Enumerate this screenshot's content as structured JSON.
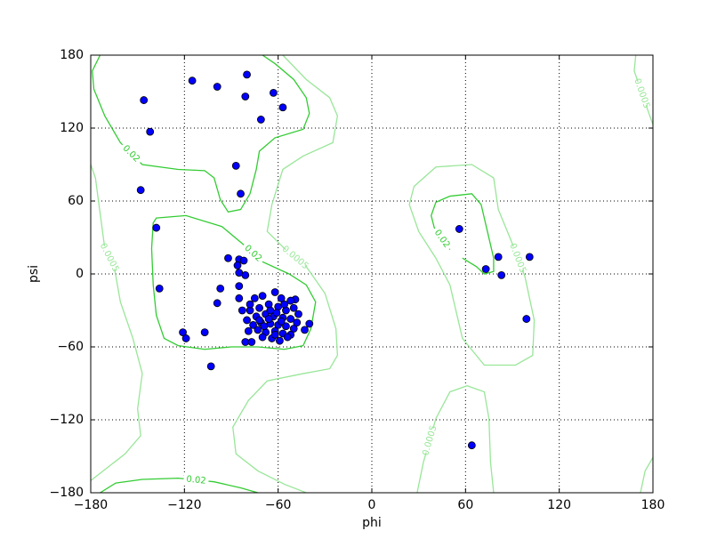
{
  "chart_data": {
    "type": "scatter",
    "x_label": "phi",
    "y_label": "psi",
    "xlim": [
      -180,
      180
    ],
    "ylim": [
      -180,
      180
    ],
    "xticks": [
      {
        "value": -180,
        "label": "−180"
      },
      {
        "value": -120,
        "label": "−120"
      },
      {
        "value": -60,
        "label": "−60"
      },
      0,
      60,
      120,
      180
    ],
    "yticks": [
      {
        "value": -180,
        "label": "−180"
      },
      {
        "value": -120,
        "label": "−120"
      },
      {
        "value": -60,
        "label": "−60"
      },
      0,
      60,
      120,
      180
    ],
    "grid": true,
    "color": "#0000ff",
    "x": [
      -146,
      -142,
      -115,
      -99,
      -80,
      -81,
      -63,
      -57,
      -71,
      -87,
      -148,
      -84,
      -138,
      -136,
      -121,
      -119,
      -107,
      -103,
      -99,
      -97,
      -92,
      -85,
      -82,
      -86,
      -85,
      -81,
      -85,
      -85,
      56,
      73,
      81,
      101,
      83,
      99,
      64,
      -40,
      -43,
      -49,
      -81,
      -77,
      -75,
      -70,
      -62,
      -58,
      -52,
      -78,
      -72,
      -66,
      -60,
      -55,
      -50,
      -80,
      -74,
      -68,
      -63,
      -57,
      -52,
      -47,
      -76,
      -71,
      -65,
      -60,
      -55,
      -50,
      -79,
      -73,
      -68,
      -62,
      -57,
      -52,
      -70,
      -64,
      -59,
      -54,
      -66,
      -61,
      -69,
      -58,
      -65,
      -72,
      -78,
      -83,
      -48,
      -56,
      -62
    ],
    "y": [
      143,
      117,
      159,
      154,
      164,
      146,
      149,
      137,
      127,
      89,
      69,
      66,
      38,
      -12,
      -48,
      -53,
      -48,
      -76,
      -24,
      -12,
      13,
      12,
      11,
      7,
      1,
      -1,
      -10,
      -20,
      37,
      4,
      14,
      14,
      -1,
      -37,
      -141,
      -41,
      -46,
      -21,
      -56,
      -56,
      -20,
      -18,
      -15,
      -20,
      -22,
      -30,
      -28,
      -25,
      -27,
      -30,
      -28,
      -38,
      -35,
      -33,
      -35,
      -36,
      -37,
      -33,
      -42,
      -40,
      -41,
      -42,
      -43,
      -45,
      -47,
      -46,
      -48,
      -47,
      -49,
      -50,
      -52,
      -53,
      -55,
      -52,
      -37,
      -32,
      -43,
      -39,
      -30,
      -38,
      -25,
      -30,
      -40,
      -25,
      -50
    ],
    "contours": [
      {
        "level": 0.02,
        "color": "#33cc33",
        "closed": false,
        "x": [
          -174,
          -179,
          -178,
          -171,
          -161,
          -147,
          -124,
          -107,
          -101,
          -97,
          -92,
          -84,
          -78,
          -74,
          -72,
          -62,
          -44,
          -40,
          -42,
          -50,
          -62,
          -70
        ],
        "y": [
          180,
          167,
          152,
          130,
          108,
          90,
          86,
          85,
          79,
          61,
          51,
          53,
          66,
          86,
          101,
          112,
          119,
          132,
          145,
          160,
          173,
          180
        ]
      },
      {
        "level": 0.02,
        "color": "#33cc33",
        "closed": true,
        "x": [
          -138,
          -119,
          -96,
          -82,
          -70,
          -53,
          -42,
          -36,
          -39,
          -44,
          -56,
          -73,
          -90,
          -107,
          -124,
          -133,
          -138,
          -140,
          -141,
          -140
        ],
        "y": [
          46,
          48,
          39,
          24,
          10,
          0,
          -9,
          -23,
          -45,
          -59,
          -62,
          -60,
          -60,
          -62,
          -59,
          -53,
          -34,
          -9,
          21,
          42
        ]
      },
      {
        "level": 0.02,
        "color": "#33cc33",
        "closed": false,
        "x": [
          50,
          40,
          38,
          41,
          50,
          64,
          70,
          74,
          78,
          78,
          72,
          67,
          58
        ],
        "y": [
          20,
          38,
          48,
          59,
          64,
          66,
          57,
          35,
          13,
          2,
          0,
          6,
          13
        ]
      },
      {
        "level": 0.02,
        "color": "#33cc33",
        "closed": false,
        "x": [
          -174,
          -164,
          -147,
          -124,
          -101,
          -84,
          -73
        ],
        "y": [
          -180,
          -172,
          -169,
          -168,
          -171,
          -176,
          -180
        ]
      },
      {
        "level": 0.0005,
        "color": "#99e699",
        "closed": false,
        "x": [
          -180,
          -177,
          -174,
          -171,
          -165,
          -161,
          -153,
          -147,
          -150,
          -148,
          -158,
          -173,
          -180
        ],
        "y": [
          90,
          79,
          50,
          21,
          6,
          -23,
          -53,
          -82,
          -111,
          -133,
          -148,
          -163,
          -170
        ]
      },
      {
        "level": 0.0005,
        "color": "#99e699",
        "closed": false,
        "x": [
          -57,
          -42,
          -27,
          -22,
          -25,
          -44,
          -57,
          -64,
          -67,
          -56,
          -42,
          -30,
          -23,
          -22,
          -27,
          -44,
          -67,
          -79,
          -89,
          -87,
          -73,
          -56,
          -42
        ],
        "y": [
          180,
          160,
          145,
          130,
          108,
          97,
          86,
          57,
          35,
          21,
          6,
          -16,
          -45,
          -67,
          -78,
          -82,
          -88,
          -104,
          -126,
          -148,
          -162,
          -173,
          -180
        ]
      },
      {
        "level": 0.0005,
        "color": "#99e699",
        "closed": true,
        "x": [
          27,
          24,
          30,
          41,
          50,
          58,
          72,
          92,
          103,
          104,
          98,
          89,
          81,
          78,
          64,
          41
        ],
        "y": [
          72,
          57,
          35,
          13,
          -9,
          -53,
          -75,
          -75,
          -67,
          -38,
          -2,
          28,
          53,
          79,
          90,
          88
        ]
      },
      {
        "level": 0.0005,
        "color": "#99e699",
        "closed": false,
        "x": [
          29,
          33,
          41,
          50,
          61,
          72,
          75,
          76,
          78
        ],
        "y": [
          -180,
          -155,
          -119,
          -97,
          -92,
          -97,
          -119,
          -155,
          -180
        ]
      },
      {
        "level": 0.0005,
        "color": "#99e699",
        "closed": false,
        "x": [
          169,
          168,
          178,
          180
        ],
        "y": [
          180,
          167,
          130,
          123
        ]
      },
      {
        "level": 0.0005,
        "color": "#99e699",
        "closed": false,
        "x": [
          172,
          175,
          180
        ],
        "y": [
          -180,
          -162,
          -151
        ]
      }
    ]
  }
}
